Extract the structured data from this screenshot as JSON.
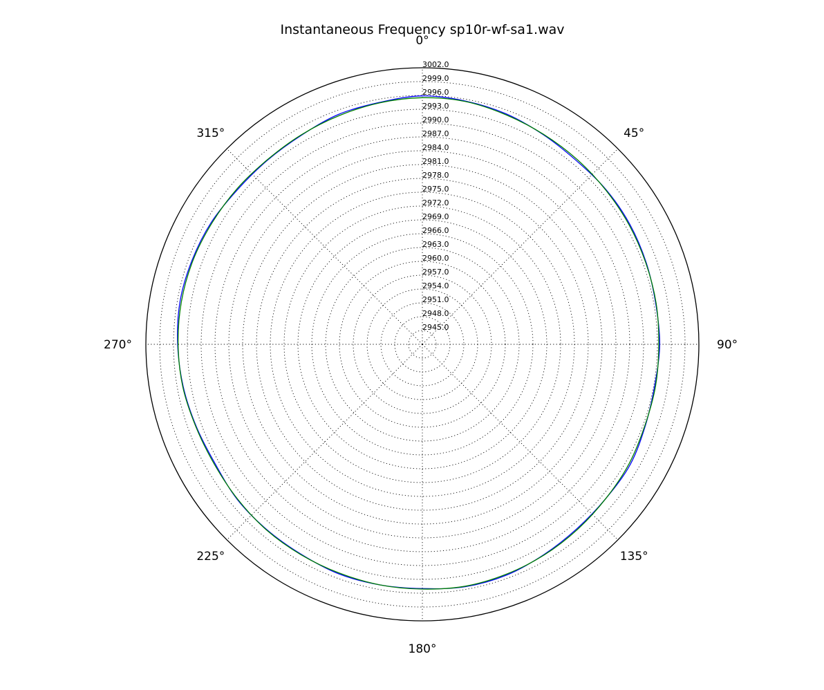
{
  "chart_data": {
    "type": "polar-line",
    "title": "Instantaneous Frequency  sp10r-wf-sa1.wav",
    "theta_direction": "clockwise",
    "theta_zero_location": "top",
    "theta_tick_values": [
      0,
      45,
      90,
      135,
      180,
      225,
      270,
      315
    ],
    "theta_tick_labels": [
      "0°",
      "45°",
      "90°",
      "135°",
      "180°",
      "225°",
      "270°",
      "315°"
    ],
    "r_min": 2942.0,
    "r_max": 3002.0,
    "r_tick_values": [
      2945.0,
      2948.0,
      2951.0,
      2954.0,
      2957.0,
      2960.0,
      2963.0,
      2966.0,
      2969.0,
      2972.0,
      2975.0,
      2978.0,
      2981.0,
      2984.0,
      2987.0,
      2990.0,
      2993.0,
      2996.0,
      2999.0,
      3002.0
    ],
    "r_tick_labels": [
      "2945.0",
      "2948.0",
      "2951.0",
      "2954.0",
      "2957.0",
      "2960.0",
      "2963.0",
      "2966.0",
      "2969.0",
      "2972.0",
      "2975.0",
      "2978.0",
      "2981.0",
      "2984.0",
      "2987.0",
      "2990.0",
      "2993.0",
      "2996.0",
      "2999.0",
      "3002.0"
    ],
    "grid": true,
    "legend": "none",
    "series": [
      {
        "color": "#0000ff",
        "theta_deg": [
          0,
          10,
          20,
          30,
          40,
          50,
          60,
          70,
          80,
          90,
          100,
          110,
          120,
          130,
          140,
          150,
          160,
          170,
          180,
          190,
          200,
          210,
          220,
          230,
          240,
          250,
          260,
          270,
          280,
          290,
          300,
          310,
          320,
          330,
          340,
          350
        ],
        "r": [
          2995.9,
          2995.6,
          2995.2,
          2994.5,
          2994.0,
          2994.1,
          2994.0,
          2993.7,
          2993.4,
          2993.5,
          2993.2,
          2993.5,
          2994.1,
          2994.0,
          2994.2,
          2994.7,
          2995.3,
          2995.4,
          2995.0,
          2995.0,
          2995.0,
          2994.6,
          2994.5,
          2994.4,
          2993.9,
          2994.2,
          2994.7,
          2995.1,
          2995.4,
          2995.2,
          2994.9,
          2994.3,
          2994.2,
          2994.4,
          2995.1,
          2995.3
        ]
      },
      {
        "color": "#008000",
        "theta_deg": [
          0,
          10,
          20,
          30,
          40,
          50,
          60,
          70,
          80,
          90,
          100,
          110,
          120,
          130,
          140,
          150,
          160,
          170,
          180,
          190,
          200,
          210,
          220,
          230,
          240,
          250,
          260,
          270,
          280,
          290,
          300,
          310,
          320,
          330,
          340,
          350
        ],
        "r": [
          2995.5,
          2995.5,
          2995.0,
          2994.6,
          2994.3,
          2994.0,
          2993.8,
          2993.6,
          2993.5,
          2993.3,
          2993.4,
          2993.4,
          2993.8,
          2994.0,
          2994.4,
          2994.8,
          2995.1,
          2995.3,
          2995.1,
          2995.0,
          2994.8,
          2994.7,
          2994.6,
          2994.3,
          2994.1,
          2994.3,
          2994.8,
          2995.0,
          2995.1,
          2995.0,
          2994.7,
          2994.5,
          2994.3,
          2994.5,
          2994.8,
          2995.2
        ]
      }
    ]
  }
}
